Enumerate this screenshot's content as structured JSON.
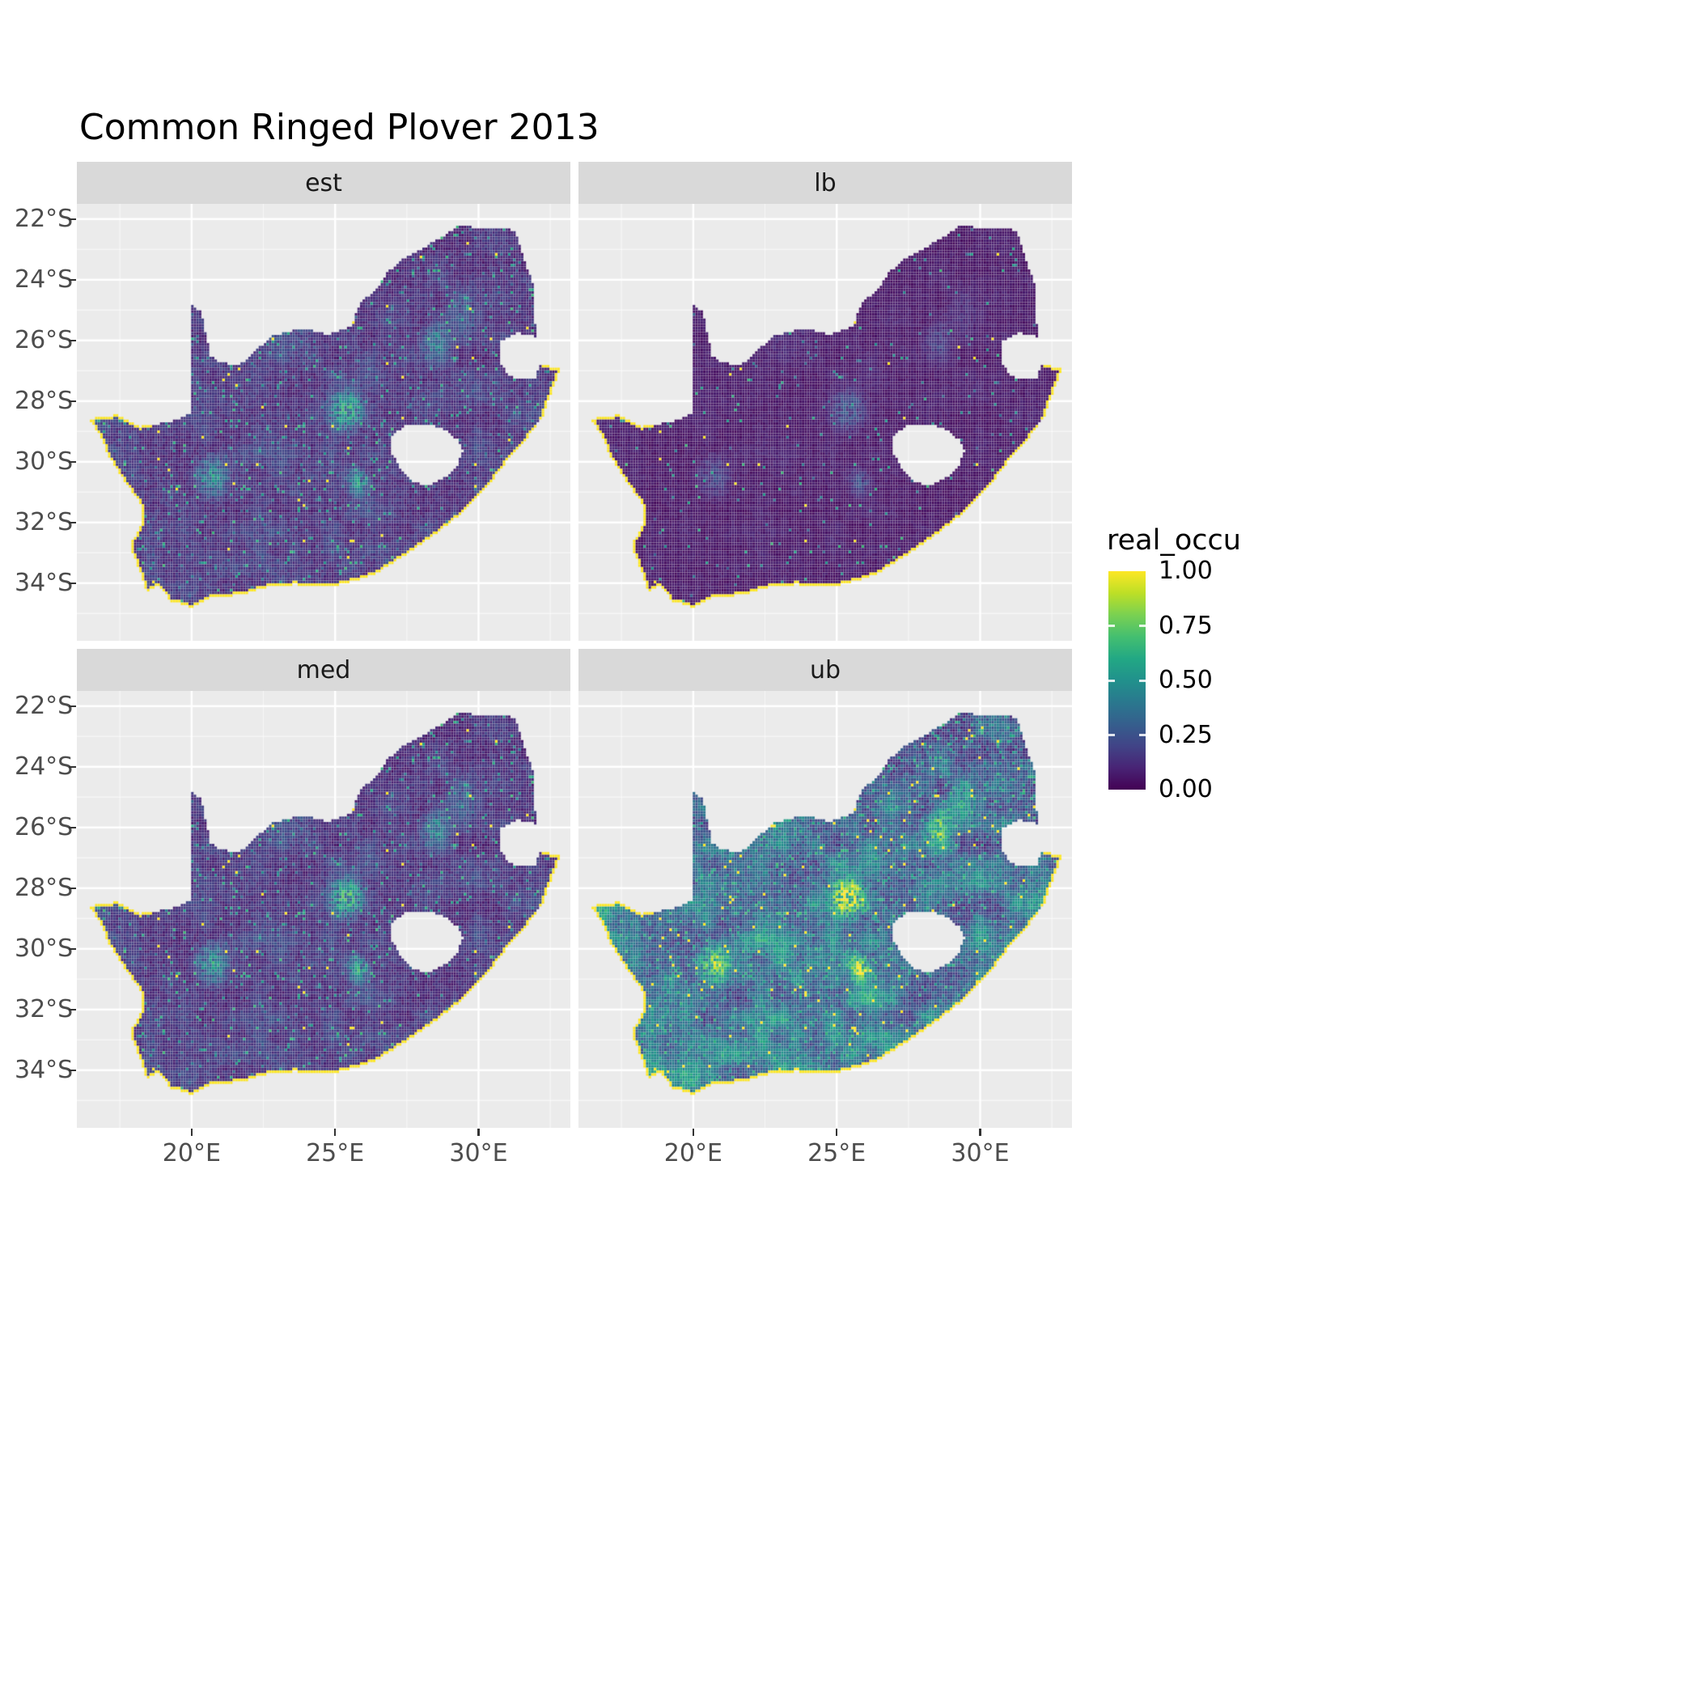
{
  "title": "Common Ringed Plover 2013",
  "facets": [
    "est",
    "lb",
    "med",
    "ub"
  ],
  "legend": {
    "title": "real_occu",
    "labels": [
      "1.00",
      "0.75",
      "0.50",
      "0.25",
      "0.00"
    ],
    "values": [
      1,
      0.75,
      0.5,
      0.25,
      0
    ]
  },
  "axes": {
    "x": {
      "labels": [
        "20°E",
        "25°E",
        "30°E"
      ],
      "values": [
        20,
        25,
        30
      ]
    },
    "y": {
      "labels": [
        "22°S",
        "24°S",
        "26°S",
        "28°S",
        "30°S",
        "32°S",
        "34°S"
      ],
      "values": [
        -22,
        -24,
        -26,
        -28,
        -30,
        -32,
        -34
      ]
    }
  },
  "style": {
    "panel_bg": "#ebebeb",
    "strip_bg": "#d9d9d9",
    "grid_major": "#ffffff",
    "grid_minor": "rgba(255,255,255,0.55)",
    "axis_text": "#4d4d4d",
    "tick_color": "#333333",
    "title_color": "#000000",
    "viridis": [
      "#440154",
      "#482475",
      "#414487",
      "#355f8d",
      "#2a788e",
      "#21918c",
      "#22a884",
      "#44bf70",
      "#7ad151",
      "#bddf26",
      "#fde725"
    ]
  },
  "chart_data": {
    "type": "heatmap",
    "subtype": "faceted-raster-map",
    "title": "Common Ringed Plover 2013",
    "region": "South Africa (Lesotho and Eswatini shown as holes)",
    "facet_variable_values": [
      "est",
      "lb",
      "med",
      "ub"
    ],
    "legend_title": "real_occu",
    "value_range": [
      0,
      1
    ],
    "legend_ticks": [
      0,
      0.25,
      0.5,
      0.75,
      1
    ],
    "x_range": [
      16.0,
      33.2
    ],
    "y_range": [
      -35.9,
      -21.5
    ],
    "x_ticks": [
      20,
      25,
      30
    ],
    "y_ticks": [
      -22,
      -24,
      -26,
      -28,
      -30,
      -32,
      -34
    ],
    "colormap": "viridis",
    "grid": "on",
    "legend_position": "right",
    "coast_value": 1.0,
    "outline": [
      [
        16.45,
        -28.6
      ],
      [
        17.4,
        -28.45
      ],
      [
        18.2,
        -28.85
      ],
      [
        19.2,
        -28.7
      ],
      [
        19.98,
        -28.42
      ],
      [
        19.98,
        -24.76
      ],
      [
        20.35,
        -25.1
      ],
      [
        20.65,
        -26.5
      ],
      [
        20.95,
        -26.7
      ],
      [
        21.65,
        -26.85
      ],
      [
        22.2,
        -26.35
      ],
      [
        22.85,
        -25.85
      ],
      [
        23.9,
        -25.6
      ],
      [
        24.75,
        -25.8
      ],
      [
        25.55,
        -25.55
      ],
      [
        25.9,
        -24.75
      ],
      [
        26.45,
        -24.3
      ],
      [
        26.85,
        -23.75
      ],
      [
        27.25,
        -23.4
      ],
      [
        28.0,
        -23.0
      ],
      [
        28.8,
        -22.55
      ],
      [
        29.35,
        -22.2
      ],
      [
        30.0,
        -22.3
      ],
      [
        30.85,
        -22.3
      ],
      [
        31.3,
        -22.4
      ],
      [
        31.55,
        -23.2
      ],
      [
        31.95,
        -24.3
      ],
      [
        31.95,
        -25.35
      ],
      [
        32.05,
        -25.9
      ],
      [
        31.4,
        -25.75
      ],
      [
        30.8,
        -26.0
      ],
      [
        30.8,
        -26.8
      ],
      [
        31.1,
        -27.2
      ],
      [
        31.95,
        -27.3
      ],
      [
        32.15,
        -26.85
      ],
      [
        32.89,
        -26.86
      ],
      [
        32.55,
        -27.7
      ],
      [
        32.25,
        -28.5
      ],
      [
        31.75,
        -29.15
      ],
      [
        31.05,
        -29.9
      ],
      [
        30.25,
        -30.9
      ],
      [
        29.35,
        -31.75
      ],
      [
        28.4,
        -32.45
      ],
      [
        27.4,
        -33.1
      ],
      [
        26.4,
        -33.7
      ],
      [
        25.6,
        -33.95
      ],
      [
        24.8,
        -34.15
      ],
      [
        23.6,
        -34.05
      ],
      [
        22.55,
        -34.15
      ],
      [
        21.7,
        -34.4
      ],
      [
        20.7,
        -34.45
      ],
      [
        20.0,
        -34.8
      ],
      [
        19.3,
        -34.6
      ],
      [
        18.8,
        -34.05
      ],
      [
        18.45,
        -34.32
      ],
      [
        18.3,
        -33.9
      ],
      [
        18.0,
        -33.15
      ],
      [
        17.85,
        -32.75
      ],
      [
        18.3,
        -32.0
      ],
      [
        18.25,
        -31.4
      ],
      [
        17.55,
        -30.5
      ],
      [
        17.05,
        -29.7
      ],
      [
        16.8,
        -29.1
      ]
    ],
    "lesotho_hole": [
      [
        26.95,
        -29.15
      ],
      [
        27.45,
        -28.8
      ],
      [
        28.15,
        -28.75
      ],
      [
        28.75,
        -28.9
      ],
      [
        29.25,
        -29.25
      ],
      [
        29.45,
        -29.65
      ],
      [
        29.25,
        -30.15
      ],
      [
        28.85,
        -30.5
      ],
      [
        28.25,
        -30.8
      ],
      [
        27.7,
        -30.65
      ],
      [
        27.3,
        -30.25
      ],
      [
        27.0,
        -29.75
      ]
    ],
    "hotspots": [
      [
        25.4,
        -28.3,
        1.1,
        0.55
      ],
      [
        20.7,
        -30.5,
        1.0,
        0.4
      ],
      [
        25.8,
        -30.7,
        0.7,
        0.45
      ],
      [
        28.5,
        -26.1,
        0.9,
        0.3
      ],
      [
        23.5,
        -25.8,
        1.6,
        0.12
      ],
      [
        29.5,
        -25.0,
        1.2,
        0.12
      ]
    ],
    "facet_params": {
      "est": {
        "base": 0.09,
        "coarse": 0.1,
        "south": 0.05,
        "hot": 1.0,
        "speckle": 0.05,
        "yellow": 0.004
      },
      "lb": {
        "base": 0.045,
        "coarse": 0.04,
        "south": 0.0,
        "hot": 0.45,
        "speckle": 0.018,
        "yellow": 0.0018
      },
      "med": {
        "base": 0.09,
        "coarse": 0.11,
        "south": 0.06,
        "hot": 1.1,
        "speckle": 0.05,
        "yellow": 0.004
      },
      "ub": {
        "base": 0.16,
        "coarse": 0.3,
        "south": 0.3,
        "hot": 1.5,
        "speckle": 0.13,
        "yellow": 0.012
      }
    }
  }
}
